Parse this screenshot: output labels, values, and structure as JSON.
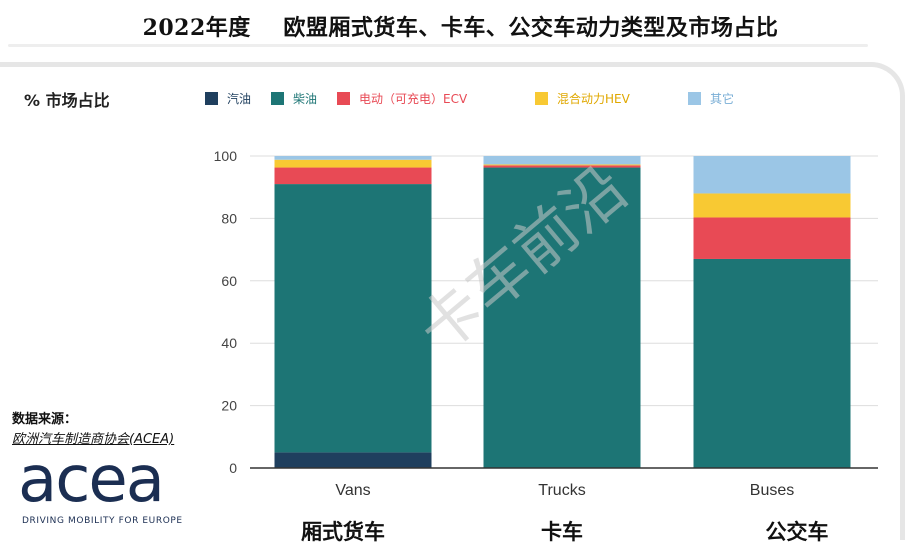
{
  "title": "2022年度    欧盟厢式货车、卡车、公交车动力类型及市场占比",
  "y_axis_label": "%  市场占比",
  "source": {
    "heading": "数据来源：",
    "text": "欧洲汽车制造商协会(ACEA)"
  },
  "logo": {
    "word": "acea",
    "tagline": "DRIVING MOBILITY FOR EUROPE"
  },
  "watermark": "卡车前沿",
  "category_labels_cn": [
    "厢式货车",
    "卡车",
    "公交车"
  ],
  "chart_data": {
    "type": "bar",
    "stacked": true,
    "categories": [
      "Vans",
      "Trucks",
      "Buses"
    ],
    "ylim": [
      0,
      100
    ],
    "yticks": [
      0,
      20,
      40,
      60,
      80,
      100
    ],
    "grid": true,
    "legend_position": "top",
    "series": [
      {
        "name": "汽油",
        "color": "#1f3f5e",
        "values": [
          5,
          0,
          0
        ]
      },
      {
        "name": "柴油",
        "color": "#1d7575",
        "values": [
          86,
          96.3,
          67
        ]
      },
      {
        "name": "电动（可充电）ECV",
        "color": "#e84a55",
        "values": [
          5.3,
          0.7,
          13.3
        ]
      },
      {
        "name": "混合动力HEV",
        "color": "#f8c933",
        "values": [
          2.5,
          0.3,
          7.7
        ]
      },
      {
        "name": "其它",
        "color": "#9bc6e6",
        "values": [
          1.2,
          2.7,
          12
        ]
      }
    ]
  }
}
